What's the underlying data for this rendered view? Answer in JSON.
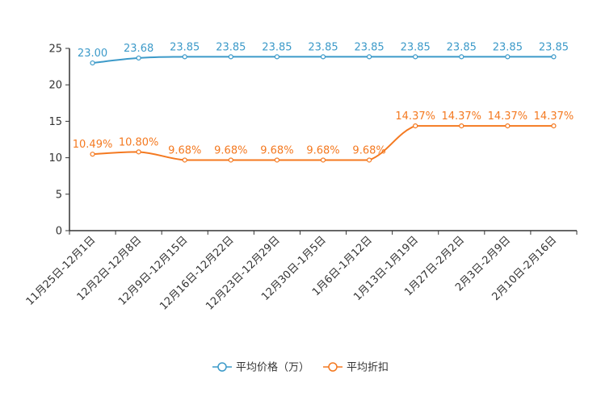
{
  "chart_data": {
    "type": "line",
    "title": "",
    "xlabel": "",
    "ylabel": "",
    "ylim": [
      0,
      25
    ],
    "yticks": [
      0,
      5,
      10,
      15,
      20,
      25
    ],
    "grid": false,
    "smooth": true,
    "legend_position": "bottom-center",
    "categories": [
      "11月25日-12月1日",
      "12月2日-12月8日",
      "12月9日-12月15日",
      "12月16日-12月22日",
      "12月23日-12月29日",
      "12月30日-1月5日",
      "1月6日-1月12日",
      "1月13日-1月19日",
      "1月27日-2月2日",
      "2月3日-2月9日",
      "2月10日-2月16日"
    ],
    "series": [
      {
        "name": "平均价格（万）",
        "color": "#3c9ac9",
        "values": [
          23.0,
          23.68,
          23.85,
          23.85,
          23.85,
          23.85,
          23.85,
          23.85,
          23.85,
          23.85,
          23.85
        ],
        "labels": [
          "23.00",
          "23.68",
          "23.85",
          "23.85",
          "23.85",
          "23.85",
          "23.85",
          "23.85",
          "23.85",
          "23.85",
          "23.85"
        ]
      },
      {
        "name": "平均折扣",
        "color": "#f47920",
        "values": [
          10.49,
          10.8,
          9.68,
          9.68,
          9.68,
          9.68,
          9.68,
          14.37,
          14.37,
          14.37,
          14.37
        ],
        "labels": [
          "10.49%",
          "10.80%",
          "9.68%",
          "9.68%",
          "9.68%",
          "9.68%",
          "9.68%",
          "14.37%",
          "14.37%",
          "14.37%",
          "14.37%"
        ]
      }
    ]
  },
  "colors": {
    "axis": "#333333",
    "price": "#3c9ac9",
    "discount": "#f47920"
  }
}
